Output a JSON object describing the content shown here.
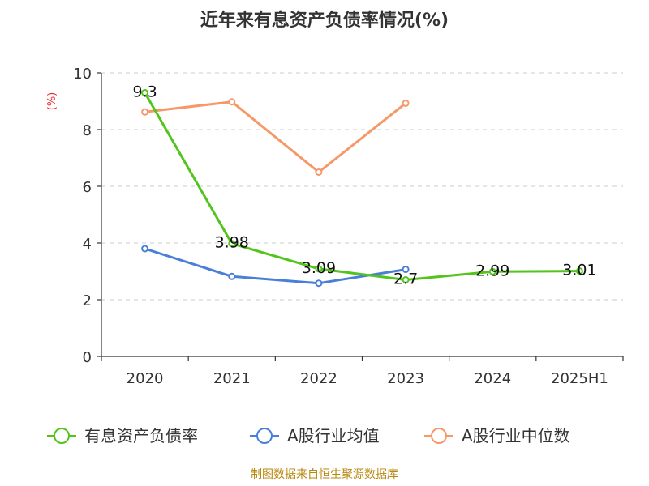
{
  "chart_data": {
    "type": "line",
    "title": "近年来有息资产负债率情况(%)",
    "y_unit": "(%)",
    "categories": [
      "2020",
      "2021",
      "2022",
      "2023",
      "2024",
      "2025H1"
    ],
    "ylim": [
      0,
      10
    ],
    "yticks": [
      "0",
      "2",
      "4",
      "6",
      "8",
      "10"
    ],
    "grid": true,
    "legend_position": "bottom",
    "series": [
      {
        "name": "有息资产负债率",
        "color": "#52c41a",
        "values": [
          9.3,
          3.98,
          3.09,
          2.7,
          2.99,
          3.01
        ],
        "labels": [
          "9.3",
          "3.98",
          "3.09",
          "2.7",
          "2.99",
          "3.01"
        ]
      },
      {
        "name": "A股行业均值",
        "color": "#4a7fd9",
        "values": [
          3.8,
          2.82,
          2.58,
          3.07,
          null,
          null
        ]
      },
      {
        "name": "A股行业中位数",
        "color": "#f79868",
        "values": [
          8.62,
          8.98,
          6.5,
          8.93,
          null,
          null
        ]
      }
    ],
    "source": "制图数据来自恒生聚源数据库"
  }
}
